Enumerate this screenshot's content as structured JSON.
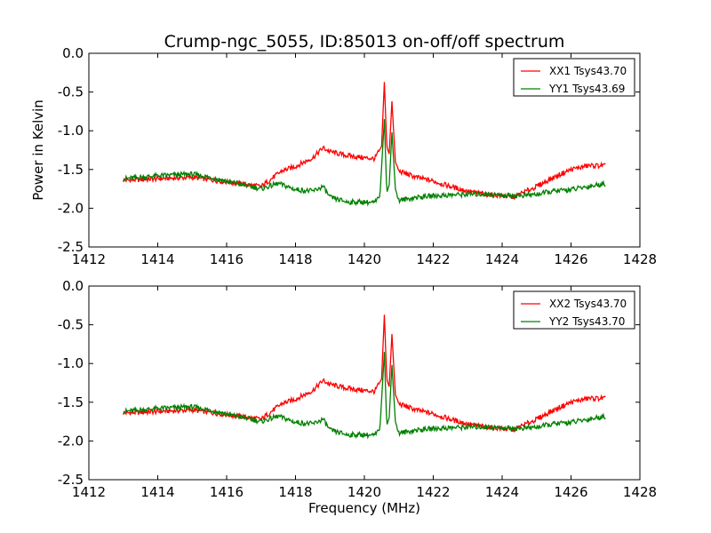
{
  "figure": {
    "title": "Crump-ngc_5055, ID:85013 on-off/off spectrum"
  },
  "chart_data": [
    {
      "type": "line",
      "title": "Crump-ngc_5055, ID:85013 on-off/off spectrum",
      "xlabel": "",
      "ylabel": "Power in Kelvin",
      "xlim": [
        1412,
        1428
      ],
      "ylim": [
        -2.5,
        0.0
      ],
      "xticks": [
        "1412",
        "1414",
        "1416",
        "1418",
        "1420",
        "1422",
        "1424",
        "1426",
        "1428"
      ],
      "yticks": [
        "0.0",
        "-0.5",
        "-1.0",
        "-1.5",
        "-2.0",
        "-2.5"
      ],
      "grid": false,
      "legend_position": "top-right",
      "series": [
        {
          "name": "XX1 Tsys43.70",
          "color": "#ff0000",
          "points": [
            [
              1413.0,
              -1.64
            ],
            [
              1414.0,
              -1.62
            ],
            [
              1415.0,
              -1.6
            ],
            [
              1415.5,
              -1.63
            ],
            [
              1416.0,
              -1.66
            ],
            [
              1416.5,
              -1.69
            ],
            [
              1417.0,
              -1.72
            ],
            [
              1417.3,
              -1.62
            ],
            [
              1417.6,
              -1.52
            ],
            [
              1418.0,
              -1.46
            ],
            [
              1418.5,
              -1.35
            ],
            [
              1418.8,
              -1.22
            ],
            [
              1419.0,
              -1.27
            ],
            [
              1419.5,
              -1.32
            ],
            [
              1420.0,
              -1.35
            ],
            [
              1420.3,
              -1.36
            ],
            [
              1420.5,
              -1.2
            ],
            [
              1420.58,
              -0.37
            ],
            [
              1420.65,
              -1.2
            ],
            [
              1420.72,
              -1.3
            ],
            [
              1420.8,
              -0.62
            ],
            [
              1420.9,
              -1.4
            ],
            [
              1421.0,
              -1.52
            ],
            [
              1421.5,
              -1.6
            ],
            [
              1422.0,
              -1.65
            ],
            [
              1422.5,
              -1.72
            ],
            [
              1423.0,
              -1.78
            ],
            [
              1423.5,
              -1.82
            ],
            [
              1424.0,
              -1.84
            ],
            [
              1424.3,
              -1.86
            ],
            [
              1424.6,
              -1.8
            ],
            [
              1425.0,
              -1.72
            ],
            [
              1425.5,
              -1.6
            ],
            [
              1426.0,
              -1.5
            ],
            [
              1426.5,
              -1.45
            ],
            [
              1427.0,
              -1.45
            ]
          ]
        },
        {
          "name": "YY1 Tsys43.69",
          "color": "#008000",
          "points": [
            [
              1413.0,
              -1.62
            ],
            [
              1414.0,
              -1.58
            ],
            [
              1415.0,
              -1.56
            ],
            [
              1415.5,
              -1.6
            ],
            [
              1416.0,
              -1.65
            ],
            [
              1416.5,
              -1.7
            ],
            [
              1417.0,
              -1.75
            ],
            [
              1417.5,
              -1.68
            ],
            [
              1418.0,
              -1.76
            ],
            [
              1418.5,
              -1.78
            ],
            [
              1418.8,
              -1.72
            ],
            [
              1419.0,
              -1.86
            ],
            [
              1419.5,
              -1.92
            ],
            [
              1420.0,
              -1.92
            ],
            [
              1420.3,
              -1.93
            ],
            [
              1420.45,
              -1.85
            ],
            [
              1420.58,
              -0.85
            ],
            [
              1420.65,
              -1.8
            ],
            [
              1420.72,
              -1.7
            ],
            [
              1420.8,
              -1.02
            ],
            [
              1420.9,
              -1.75
            ],
            [
              1421.0,
              -1.9
            ],
            [
              1421.5,
              -1.86
            ],
            [
              1422.0,
              -1.84
            ],
            [
              1422.5,
              -1.83
            ],
            [
              1423.0,
              -1.82
            ],
            [
              1423.5,
              -1.82
            ],
            [
              1424.0,
              -1.83
            ],
            [
              1424.5,
              -1.84
            ],
            [
              1425.0,
              -1.82
            ],
            [
              1425.5,
              -1.78
            ],
            [
              1426.0,
              -1.76
            ],
            [
              1426.5,
              -1.72
            ],
            [
              1427.0,
              -1.68
            ]
          ]
        }
      ]
    },
    {
      "type": "line",
      "title": "",
      "xlabel": "Frequency (MHz)",
      "ylabel": "",
      "xlim": [
        1412,
        1428
      ],
      "ylim": [
        -2.5,
        0.0
      ],
      "xticks": [
        "1412",
        "1414",
        "1416",
        "1418",
        "1420",
        "1422",
        "1424",
        "1426",
        "1428"
      ],
      "yticks": [
        "0.0",
        "-0.5",
        "-1.0",
        "-1.5",
        "-2.0",
        "-2.5"
      ],
      "grid": false,
      "legend_position": "top-right",
      "series": [
        {
          "name": "XX2 Tsys43.70",
          "color": "#ff0000",
          "points": [
            [
              1413.0,
              -1.64
            ],
            [
              1414.0,
              -1.62
            ],
            [
              1415.0,
              -1.6
            ],
            [
              1415.5,
              -1.63
            ],
            [
              1416.0,
              -1.66
            ],
            [
              1416.5,
              -1.69
            ],
            [
              1417.0,
              -1.72
            ],
            [
              1417.3,
              -1.62
            ],
            [
              1417.6,
              -1.52
            ],
            [
              1418.0,
              -1.46
            ],
            [
              1418.5,
              -1.35
            ],
            [
              1418.8,
              -1.22
            ],
            [
              1419.0,
              -1.27
            ],
            [
              1419.5,
              -1.32
            ],
            [
              1420.0,
              -1.35
            ],
            [
              1420.3,
              -1.36
            ],
            [
              1420.5,
              -1.2
            ],
            [
              1420.58,
              -0.37
            ],
            [
              1420.65,
              -1.2
            ],
            [
              1420.72,
              -1.3
            ],
            [
              1420.8,
              -0.62
            ],
            [
              1420.9,
              -1.4
            ],
            [
              1421.0,
              -1.52
            ],
            [
              1421.5,
              -1.6
            ],
            [
              1422.0,
              -1.65
            ],
            [
              1422.5,
              -1.72
            ],
            [
              1423.0,
              -1.78
            ],
            [
              1423.5,
              -1.82
            ],
            [
              1424.0,
              -1.84
            ],
            [
              1424.3,
              -1.86
            ],
            [
              1424.6,
              -1.8
            ],
            [
              1425.0,
              -1.72
            ],
            [
              1425.5,
              -1.6
            ],
            [
              1426.0,
              -1.5
            ],
            [
              1426.5,
              -1.45
            ],
            [
              1427.0,
              -1.45
            ]
          ]
        },
        {
          "name": "YY2 Tsys43.70",
          "color": "#008000",
          "points": [
            [
              1413.0,
              -1.62
            ],
            [
              1414.0,
              -1.58
            ],
            [
              1415.0,
              -1.56
            ],
            [
              1415.5,
              -1.6
            ],
            [
              1416.0,
              -1.65
            ],
            [
              1416.5,
              -1.7
            ],
            [
              1417.0,
              -1.75
            ],
            [
              1417.5,
              -1.68
            ],
            [
              1418.0,
              -1.76
            ],
            [
              1418.5,
              -1.78
            ],
            [
              1418.8,
              -1.72
            ],
            [
              1419.0,
              -1.86
            ],
            [
              1419.5,
              -1.92
            ],
            [
              1420.0,
              -1.92
            ],
            [
              1420.3,
              -1.93
            ],
            [
              1420.45,
              -1.85
            ],
            [
              1420.58,
              -0.85
            ],
            [
              1420.65,
              -1.8
            ],
            [
              1420.72,
              -1.7
            ],
            [
              1420.8,
              -1.02
            ],
            [
              1420.9,
              -1.75
            ],
            [
              1421.0,
              -1.9
            ],
            [
              1421.5,
              -1.86
            ],
            [
              1422.0,
              -1.84
            ],
            [
              1422.5,
              -1.83
            ],
            [
              1423.0,
              -1.82
            ],
            [
              1423.5,
              -1.82
            ],
            [
              1424.0,
              -1.83
            ],
            [
              1424.5,
              -1.84
            ],
            [
              1425.0,
              -1.82
            ],
            [
              1425.5,
              -1.78
            ],
            [
              1426.0,
              -1.76
            ],
            [
              1426.5,
              -1.72
            ],
            [
              1427.0,
              -1.68
            ]
          ]
        }
      ]
    }
  ]
}
